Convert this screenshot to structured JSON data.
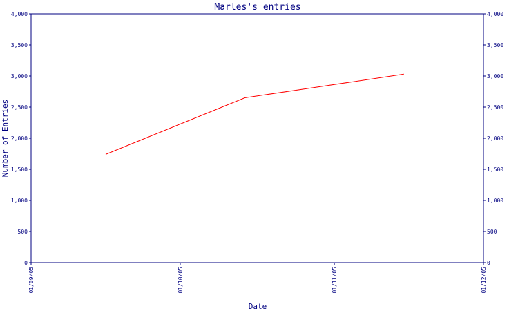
{
  "chart_data": {
    "type": "line",
    "title": "Marles's entries",
    "xlabel": "Date",
    "ylabel": "Number of Entries",
    "x_tick_labels": [
      "01/09/05",
      "01/10/05",
      "01/11/05",
      "01/12/05"
    ],
    "x_range": [
      "2005-09-01",
      "2005-12-01"
    ],
    "y_range": [
      0,
      4000
    ],
    "y_ticks": [
      0,
      500,
      1000,
      1500,
      2000,
      2500,
      3000,
      3500,
      4000
    ],
    "y_tick_labels": [
      "0",
      "500",
      "1,000",
      "1,500",
      "2,000",
      "2,500",
      "3,000",
      "3,500",
      "4,000"
    ],
    "y_axis_right": true,
    "grid": false,
    "series": [
      {
        "x": [
          "2005-09-16",
          "2005-10-14",
          "2005-11-15"
        ],
        "values": [
          1740,
          2650,
          3030
        ]
      }
    ],
    "colors": {
      "line": "#ff0000",
      "axis": "#000080",
      "text": "#000080"
    }
  }
}
